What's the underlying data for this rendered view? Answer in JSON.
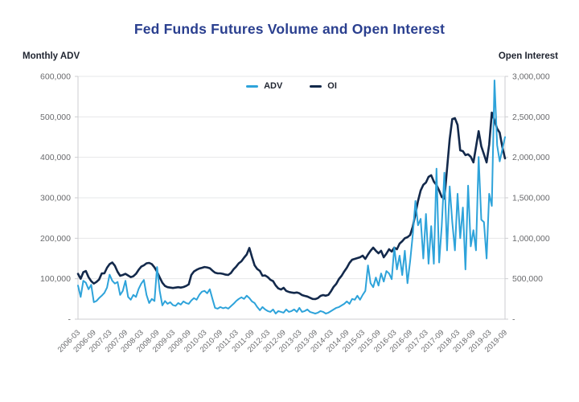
{
  "title": "Fed Funds Futures Volume and Open Interest",
  "colors": {
    "title": "#2A3F8F",
    "adv_line": "#2EA3DA",
    "oi_line": "#13294B",
    "tick_text": "#696A6D",
    "grid": "#E6E7E8",
    "spine": "#CDCED0"
  },
  "chart_data": {
    "type": "line",
    "title": "Fed Funds Futures Volume and Open Interest",
    "grid": "horizontal-only",
    "legend_position": "top-center-inside",
    "left_axis": {
      "label": "Monthly ADV",
      "min": 0,
      "max": 600000,
      "ticks": [
        "600,000",
        "500,000",
        "400,000",
        "300,000",
        "200,000",
        "100,000",
        "-"
      ]
    },
    "right_axis": {
      "label": "Open Interest",
      "min": 0,
      "max": 3000000,
      "ticks": [
        "3,000,000",
        "2,500,000",
        "2,000,000",
        "1,500,000",
        "1,000,000",
        "500,000",
        "-"
      ]
    },
    "x_axis": {
      "start": "2006-03",
      "end": "2019-09",
      "frequency": "monthly",
      "tick_every_points": 6,
      "tick_labels": [
        "2006-03",
        "2006-09",
        "2007-03",
        "2007-09",
        "2008-03",
        "2008-09",
        "2009-03",
        "2009-09",
        "2010-03",
        "2010-09",
        "2011-03",
        "2011-09",
        "2012-03",
        "2012-09",
        "2013-03",
        "2013-09",
        "2014-03",
        "2014-09",
        "2015-03",
        "2015-09",
        "2016-03",
        "2016-09",
        "2017-03",
        "2017-09",
        "2018-03",
        "2018-09",
        "2019-03",
        "2019-09"
      ]
    },
    "legend": [
      {
        "label": "ADV",
        "color": "#2EA3DA"
      },
      {
        "label": "OI",
        "color": "#13294B"
      }
    ],
    "series": [
      {
        "name": "ADV",
        "axis": "left",
        "color": "#2EA3DA",
        "values": [
          83000,
          55000,
          95000,
          90000,
          74000,
          85000,
          42000,
          45000,
          52000,
          58000,
          65000,
          78000,
          110000,
          95000,
          88000,
          92000,
          60000,
          70000,
          95000,
          55000,
          48000,
          60000,
          55000,
          75000,
          88000,
          97000,
          60000,
          40000,
          50000,
          45000,
          129000,
          70000,
          34000,
          45000,
          38000,
          42000,
          35000,
          33000,
          40000,
          36000,
          44000,
          40000,
          38000,
          46000,
          52000,
          48000,
          60000,
          68000,
          70000,
          64000,
          74000,
          50000,
          28000,
          26000,
          30000,
          27000,
          29000,
          26000,
          32000,
          38000,
          45000,
          50000,
          54000,
          50000,
          58000,
          52000,
          44000,
          40000,
          30000,
          22000,
          30000,
          24000,
          20000,
          18000,
          24000,
          14000,
          20000,
          18000,
          16000,
          24000,
          18000,
          20000,
          24000,
          18000,
          28000,
          18000,
          20000,
          24000,
          18000,
          16000,
          14000,
          16000,
          20000,
          18000,
          14000,
          16000,
          20000,
          24000,
          28000,
          30000,
          34000,
          38000,
          44000,
          38000,
          50000,
          48000,
          58000,
          48000,
          60000,
          70000,
          133000,
          89000,
          79000,
          103000,
          83000,
          113000,
          93000,
          119000,
          113000,
          99000,
          177000,
          123000,
          157000,
          109000,
          169000,
          89000,
          143000,
          209000,
          292000,
          232000,
          248000,
          150000,
          260000,
          137000,
          230000,
          137000,
          372000,
          140000,
          230000,
          362000,
          170000,
          328000,
          240000,
          170000,
          310000,
          200000,
          276000,
          123000,
          330000,
          180000,
          220000,
          170000,
          401000,
          246000,
          240000,
          150000,
          310000,
          280000,
          590000,
          430000,
          390000,
          420000,
          450000
        ]
      },
      {
        "name": "OI",
        "axis": "right",
        "color": "#13294B",
        "values": [
          560000,
          500000,
          580000,
          595000,
          520000,
          470000,
          440000,
          460000,
          490000,
          565000,
          566000,
          636000,
          680000,
          700000,
          660000,
          586000,
          536000,
          546000,
          560000,
          540000,
          520000,
          530000,
          560000,
          610000,
          650000,
          666000,
          690000,
          695000,
          680000,
          640000,
          586000,
          516000,
          450000,
          410000,
          395000,
          390000,
          385000,
          390000,
          395000,
          390000,
          397000,
          410000,
          430000,
          546000,
          590000,
          610000,
          626000,
          635000,
          645000,
          640000,
          630000,
          600000,
          575000,
          566000,
          566000,
          560000,
          550000,
          546000,
          570000,
          616000,
          650000,
          690000,
          715000,
          760000,
          800000,
          880000,
          770000,
          666000,
          620000,
          596000,
          536000,
          540000,
          520000,
          487000,
          470000,
          417000,
          380000,
          367000,
          387000,
          350000,
          337000,
          330000,
          325000,
          330000,
          320000,
          298000,
          288000,
          280000,
          265000,
          250000,
          248000,
          260000,
          288000,
          298000,
          290000,
          300000,
          347000,
          400000,
          437000,
          497000,
          536000,
          590000,
          636000,
          695000,
          735000,
          745000,
          755000,
          765000,
          785000,
          745000,
          800000,
          845000,
          884000,
          845000,
          815000,
          845000,
          765000,
          810000,
          864000,
          835000,
          884000,
          864000,
          934000,
          964000,
          1000000,
          1013000,
          1040000,
          1142000,
          1300000,
          1460000,
          1590000,
          1660000,
          1689000,
          1758000,
          1778000,
          1700000,
          1659000,
          1589000,
          1510000,
          1490000,
          1857000,
          2225000,
          2473000,
          2483000,
          2400000,
          2086000,
          2076000,
          2027000,
          2037000,
          2007000,
          1937000,
          2126000,
          2324000,
          2136000,
          2037000,
          1937000,
          2156000,
          2553000,
          2453000,
          2354000,
          2304000,
          2126000,
          1987000
        ]
      }
    ]
  }
}
